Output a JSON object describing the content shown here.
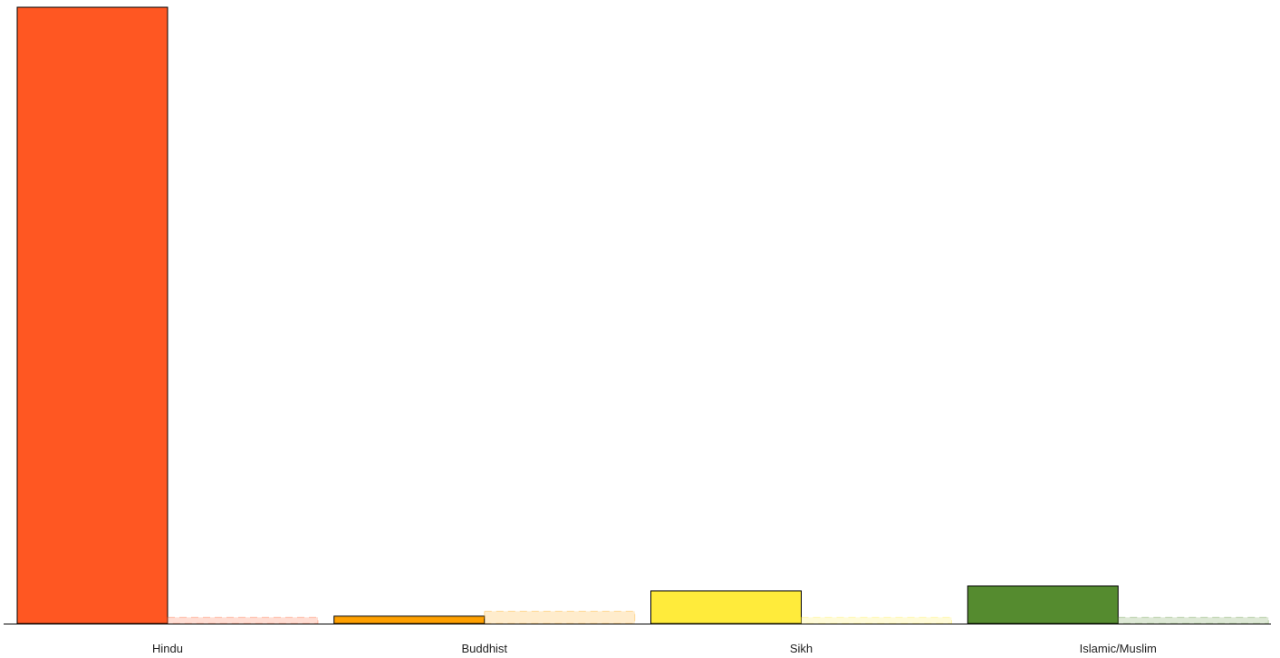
{
  "chart_data": {
    "type": "bar",
    "categories": [
      "Hindu",
      "Buddhist",
      "Sikh",
      "Islamic/Muslim"
    ],
    "colors": [
      "#ff5722",
      "#ffa000",
      "#ffeb3b",
      "#558b2f"
    ],
    "series": [
      {
        "values": [
          100,
          1.2,
          5.3,
          6.1
        ],
        "style": "solid"
      },
      {
        "values": [
          1.0,
          2.0,
          1.0,
          1.0
        ],
        "style": "faded-dashed"
      }
    ],
    "xlabel": "",
    "ylabel": "",
    "ylim": [
      0,
      100
    ],
    "grid": false,
    "legend": "none"
  }
}
